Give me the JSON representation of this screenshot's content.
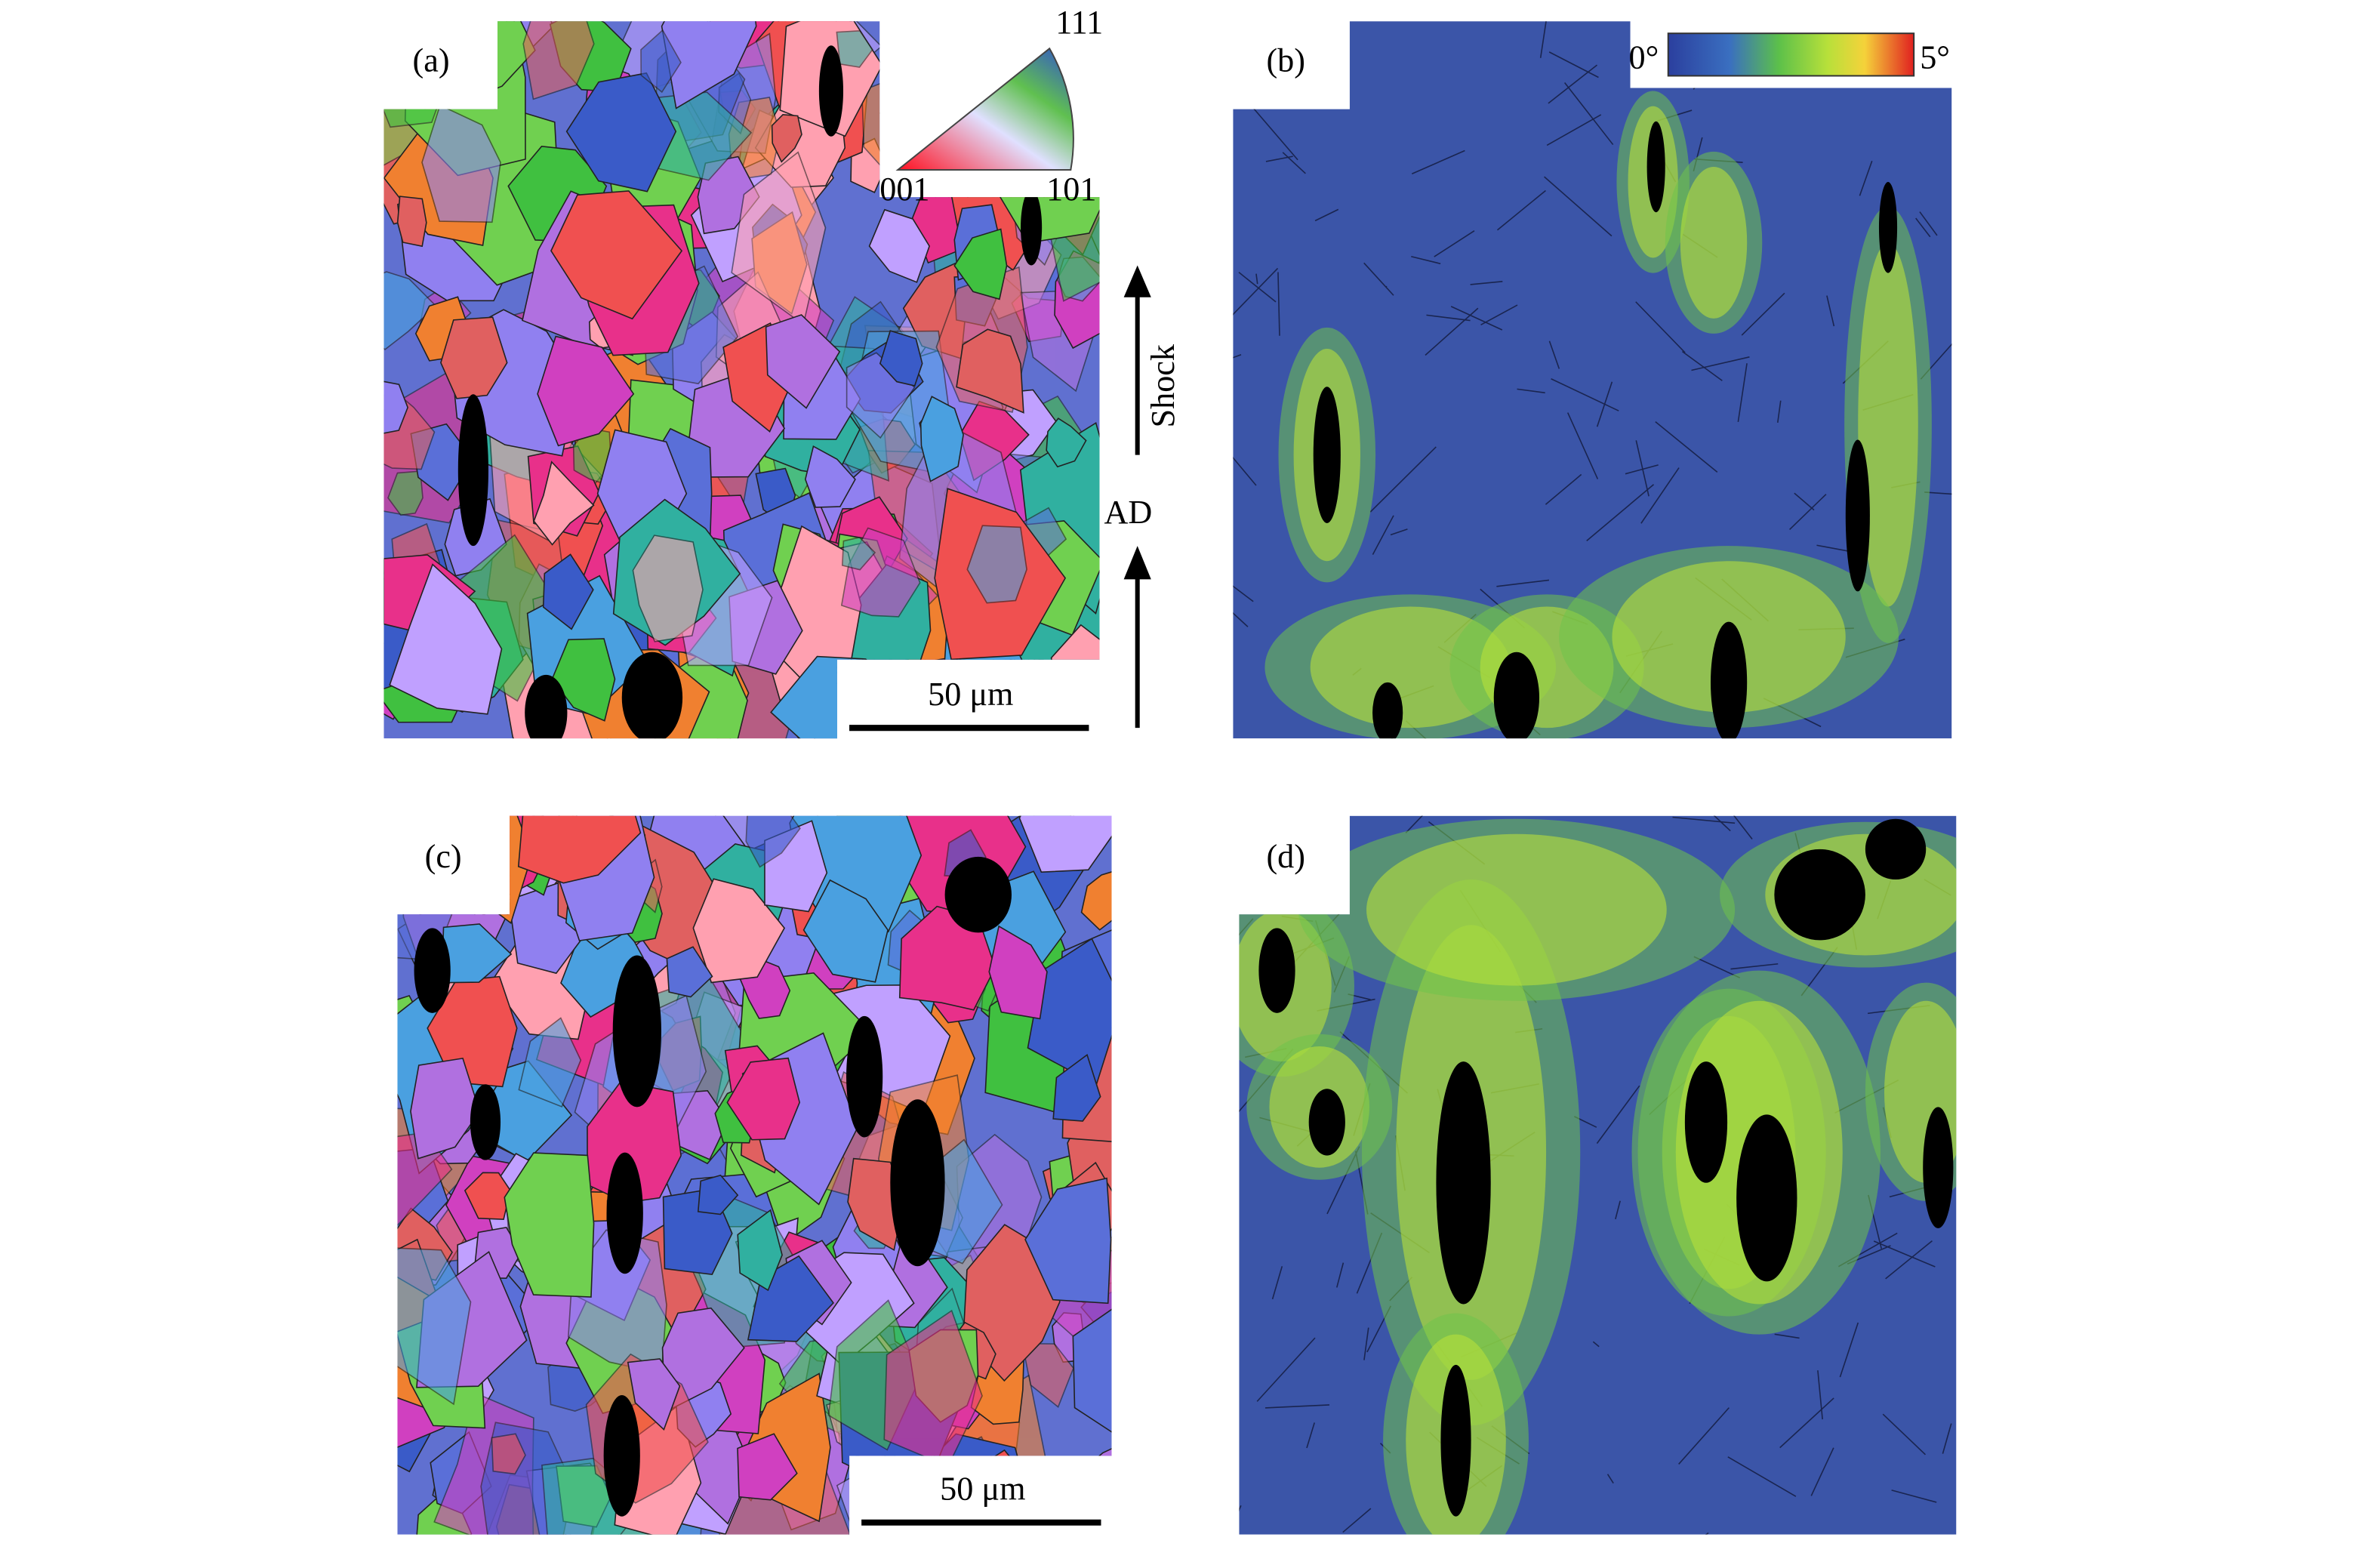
{
  "panels": [
    {
      "label": "(a)"
    },
    {
      "label": "(b)"
    },
    {
      "label": "(c)"
    },
    {
      "label": "(d)"
    }
  ],
  "ipf_legend": {
    "top": "111",
    "left": "001",
    "right": "101"
  },
  "colorbar": {
    "min": "0°",
    "max": "5°"
  },
  "arrows": {
    "shock": "Shock",
    "ad": "AD"
  },
  "scale_bars": [
    "50 μm",
    "50 μm"
  ]
}
